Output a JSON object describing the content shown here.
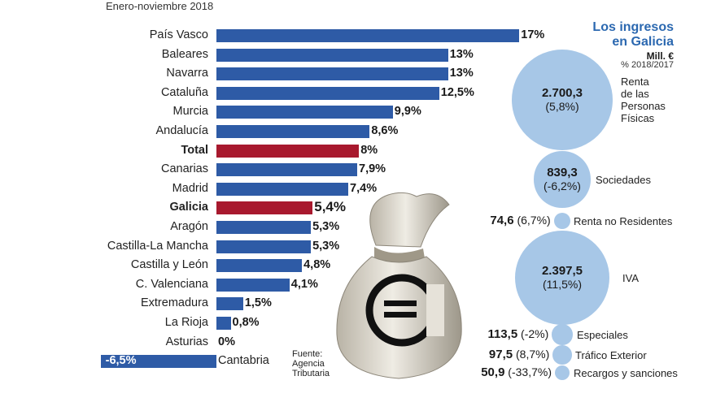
{
  "chart_data": [
    {
      "type": "bar",
      "orientation": "horizontal",
      "subtitle": "Enero-noviembre 2018",
      "unit": "%",
      "categories": [
        "País Vasco",
        "Baleares",
        "Navarra",
        "Cataluña",
        "Murcia",
        "Andalucía",
        "Total",
        "Canarias",
        "Madrid",
        "Galicia",
        "Aragón",
        "Castilla-La Mancha",
        "Castilla y León",
        "C. Valenciana",
        "Extremadura",
        "La Rioja",
        "Asturias",
        "Cantabria"
      ],
      "values": [
        17,
        13,
        13,
        12.5,
        9.9,
        8.6,
        8,
        7.9,
        7.4,
        5.4,
        5.3,
        5.3,
        4.8,
        4.1,
        1.5,
        0.8,
        0,
        -6.5
      ],
      "labels": [
        "17%",
        "13%",
        "13%",
        "12,5%",
        "9,9%",
        "8,6%",
        "8%",
        "7,9%",
        "7,4%",
        "5,4%",
        "5,3%",
        "5,3%",
        "4,8%",
        "4,1%",
        "1,5%",
        "0,8%",
        "0%",
        "-6,5%"
      ],
      "highlighted": [
        "Total",
        "Galicia"
      ],
      "colors": {
        "default": "#2e5ba6",
        "highlight": "#a8192e"
      },
      "source": [
        "Fuente:",
        "Agencia",
        "Tributaria"
      ]
    },
    {
      "type": "bubble",
      "title": [
        "Los ingresos",
        "en Galicia"
      ],
      "unit": "Mill. €",
      "subunit": "% 2018/2017",
      "color": "#a7c7e7",
      "items": [
        {
          "label": [
            "Renta",
            "de las",
            "Personas",
            "Físicas"
          ],
          "value": 2700.3,
          "value_label": "2.700,3",
          "change": "(5,8%)"
        },
        {
          "label": [
            "Sociedades"
          ],
          "value": 839.3,
          "value_label": "839,3",
          "change": "(-6,2%)"
        },
        {
          "label": [
            "Renta no Residentes"
          ],
          "value": 74.6,
          "value_label": "74,6",
          "change": "(6,7%)"
        },
        {
          "label": [
            "IVA"
          ],
          "value": 2397.5,
          "value_label": "2.397,5",
          "change": "(11,5%)"
        },
        {
          "label": [
            "Especiales"
          ],
          "value": 113.5,
          "value_label": "113,5",
          "change": "(-2%)"
        },
        {
          "label": [
            "Tráfico Exterior"
          ],
          "value": 97.5,
          "value_label": "97,5",
          "change": "(8,7%)"
        },
        {
          "label": [
            "Recargos y sanciones"
          ],
          "value": 50.9,
          "value_label": "50,9",
          "change": "(-33,7%)"
        }
      ]
    }
  ],
  "icons": {
    "bag": "money-bag-euro-icon"
  }
}
